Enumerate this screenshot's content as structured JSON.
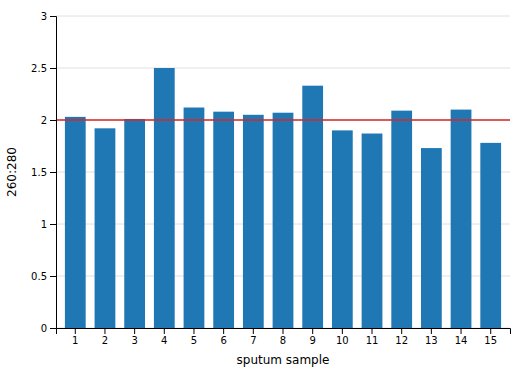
{
  "chart_data": {
    "type": "bar",
    "xlabel": "sputum sample",
    "ylabel": "260:280",
    "categories": [
      "1",
      "2",
      "3",
      "4",
      "5",
      "6",
      "7",
      "8",
      "9",
      "10",
      "11",
      "12",
      "13",
      "14",
      "15"
    ],
    "values": [
      2.03,
      1.92,
      2.01,
      2.5,
      2.12,
      2.08,
      2.05,
      2.07,
      2.33,
      1.9,
      1.87,
      2.09,
      1.73,
      2.1,
      1.78
    ],
    "reference_line": 2.0,
    "ylim": [
      0,
      3.0
    ],
    "yticks": [
      0,
      0.5,
      1.0,
      1.5,
      2.0,
      2.5,
      3.0
    ],
    "grid": true
  }
}
